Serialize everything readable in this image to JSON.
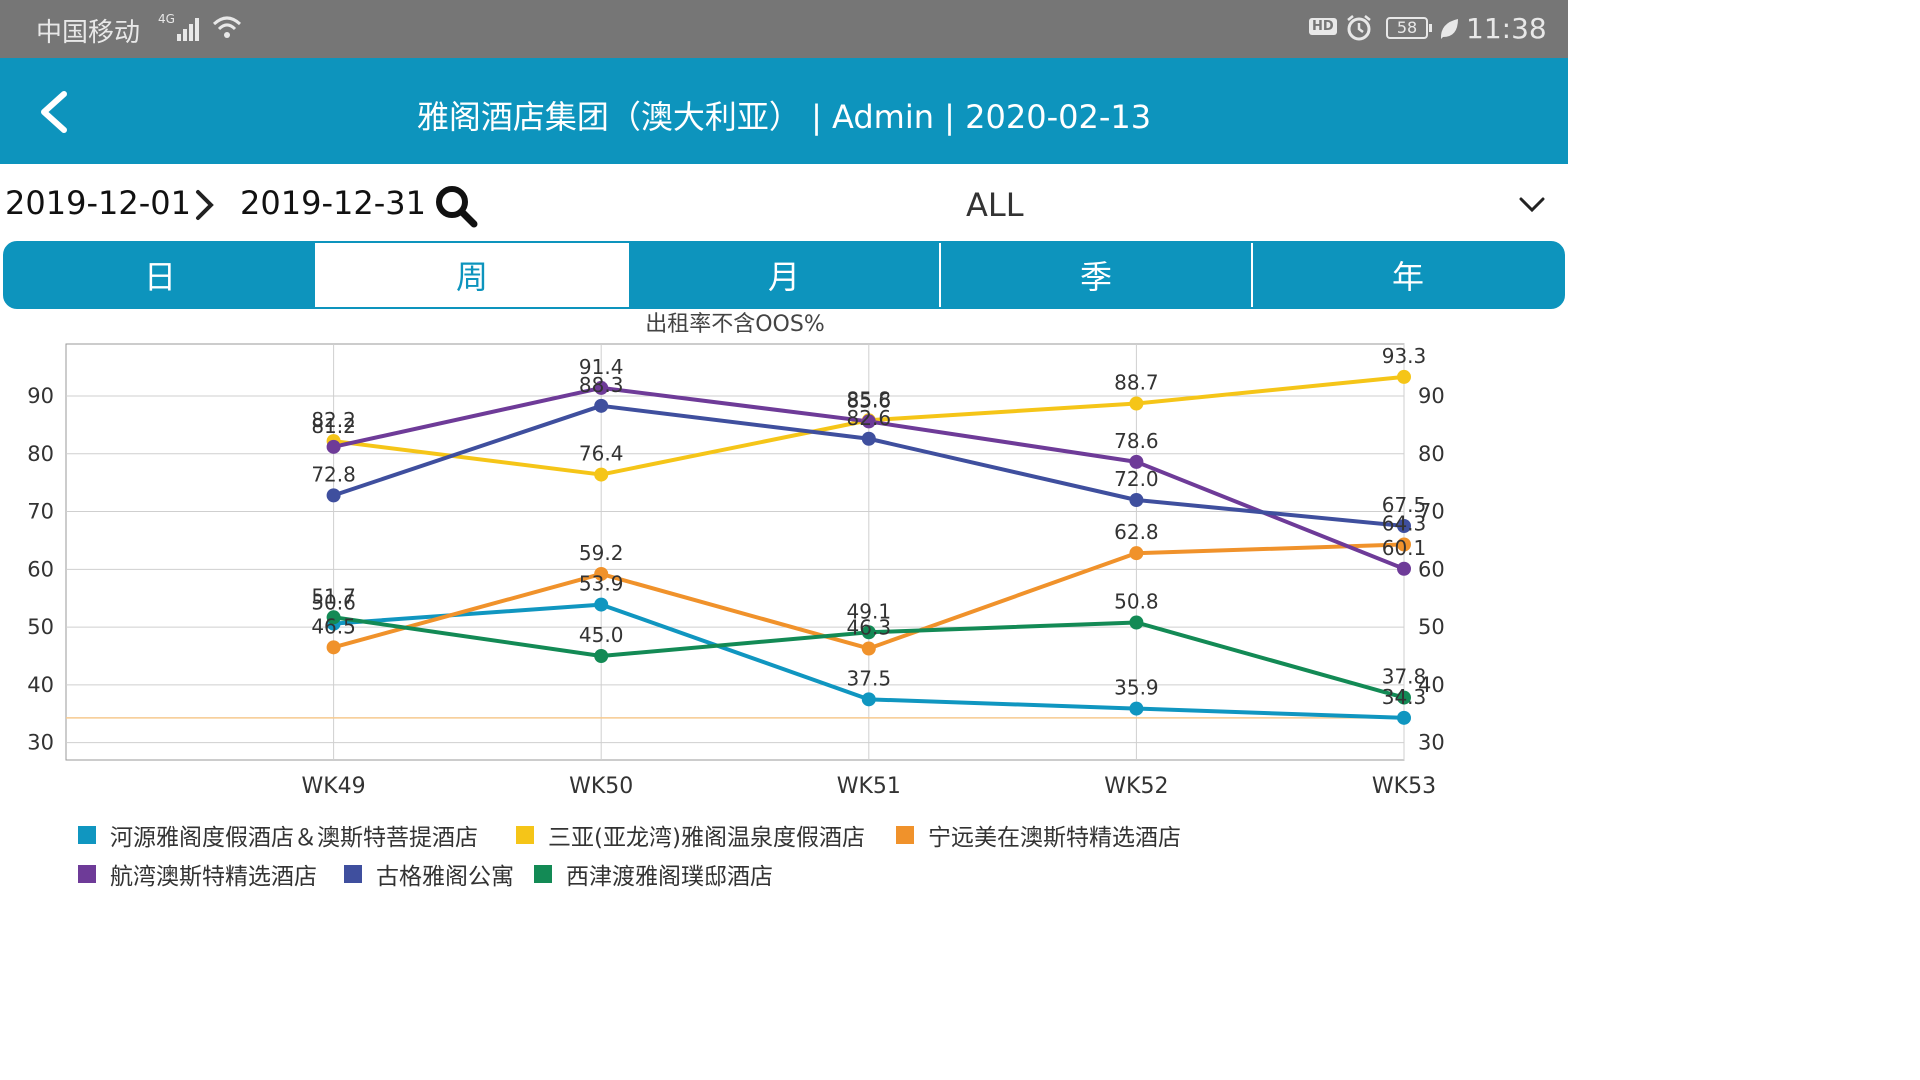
{
  "status_bar": {
    "carrier": "中国移动",
    "network": "4G",
    "battery": "58",
    "time": "11:38"
  },
  "header": {
    "title": "雅阁酒店集团（澳大利亚） | Admin | 2020-02-13"
  },
  "filters": {
    "date_start": "2019-12-01",
    "date_end": "2019-12-31",
    "scope": "ALL"
  },
  "tabs": [
    {
      "label": "日",
      "active": false
    },
    {
      "label": "周",
      "active": true
    },
    {
      "label": "月",
      "active": false
    },
    {
      "label": "季",
      "active": false
    },
    {
      "label": "年",
      "active": false
    }
  ],
  "chart_data": {
    "type": "line",
    "title": "出租率不含OOS%",
    "categories": [
      "WK49",
      "WK50",
      "WK51",
      "WK52",
      "WK53"
    ],
    "ylim": [
      27,
      99
    ],
    "yticks": [
      30,
      40,
      50,
      60,
      70,
      80,
      90
    ],
    "grid": true,
    "legend_position": "bottom",
    "series": [
      {
        "name": "河源雅阁度假酒店＆澳斯特菩提酒店",
        "color": "#1096c0",
        "values": [
          50.6,
          53.9,
          37.5,
          35.9,
          34.3
        ],
        "labels": [
          "50.6",
          "53.9",
          "37.5",
          "35.9",
          "34.3"
        ]
      },
      {
        "name": "三亚(亚龙湾)雅阁温泉度假酒店",
        "color": "#f5c518",
        "values": [
          82.2,
          76.4,
          85.8,
          88.7,
          93.3
        ],
        "labels": [
          "82.2",
          "76.4",
          "85.8",
          "88.7",
          "93.3"
        ]
      },
      {
        "name": "宁远美在澳斯特精选酒店",
        "color": "#f0922b",
        "values": [
          46.5,
          59.2,
          46.3,
          62.8,
          64.3
        ],
        "labels": [
          "46.5",
          "59.2",
          "46.3",
          "62.8",
          "64.3"
        ]
      },
      {
        "name": "航湾澳斯特精选酒店",
        "color": "#6e3b98",
        "values": [
          81.2,
          91.4,
          85.6,
          78.6,
          60.1
        ],
        "labels": [
          "81.2",
          "91.4",
          "85.6",
          "78.6",
          "60.1"
        ]
      },
      {
        "name": "古格雅阁公寓",
        "color": "#3f4f9e",
        "values": [
          72.8,
          88.3,
          82.6,
          72.0,
          67.5
        ],
        "labels": [
          "72.8",
          "88.3",
          "82.6",
          "72.0",
          "67.5"
        ]
      },
      {
        "name": "西津渡雅阁璞邸酒店",
        "color": "#138a55",
        "values": [
          51.7,
          45.0,
          49.1,
          50.8,
          37.8
        ],
        "labels": [
          "51.7",
          "45.0",
          "49.1",
          "50.8",
          "37.8"
        ]
      }
    ],
    "reference_line": {
      "value": 34.3,
      "color": "#f6c98f"
    }
  }
}
